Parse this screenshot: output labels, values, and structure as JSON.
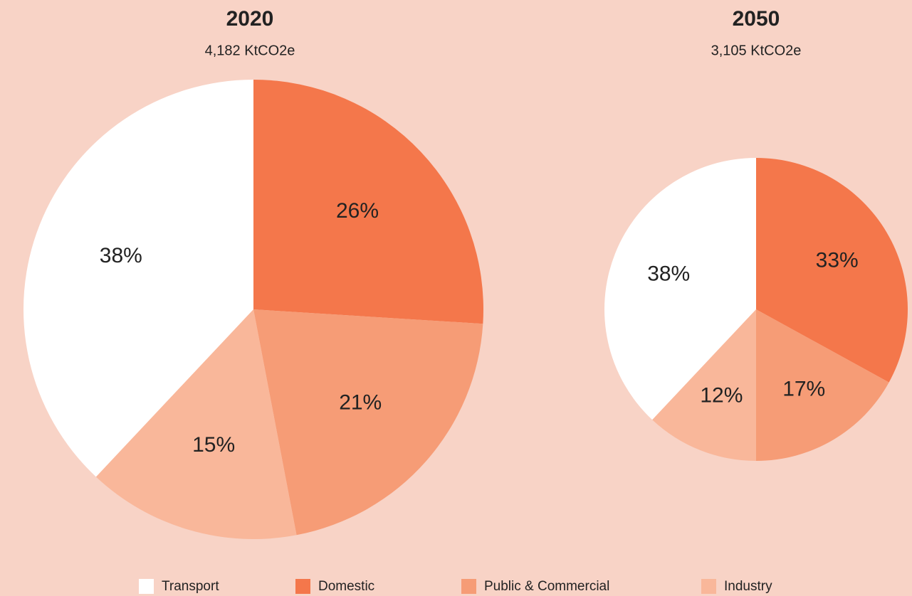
{
  "chart_data": [
    {
      "type": "pie",
      "title": "2020",
      "subtitle": "4,182 KtCO2e",
      "categories": [
        "Transport",
        "Domestic",
        "Public & Commercial",
        "Industry"
      ],
      "values": [
        38,
        26,
        21,
        15
      ],
      "value_labels": [
        "38%",
        "26%",
        "21%",
        "15%"
      ],
      "colors": [
        "#ffffff",
        "#f4774b",
        "#f69c76",
        "#f9b79a"
      ]
    },
    {
      "type": "pie",
      "title": "2050",
      "subtitle": "3,105 KtCO2e",
      "values": [
        38,
        33,
        17,
        12
      ],
      "value_labels": [
        "38%",
        "33%",
        "17%",
        "12%"
      ],
      "colors": [
        "#ffffff",
        "#f4774b",
        "#f69c76",
        "#f9b79a"
      ]
    }
  ]
}
